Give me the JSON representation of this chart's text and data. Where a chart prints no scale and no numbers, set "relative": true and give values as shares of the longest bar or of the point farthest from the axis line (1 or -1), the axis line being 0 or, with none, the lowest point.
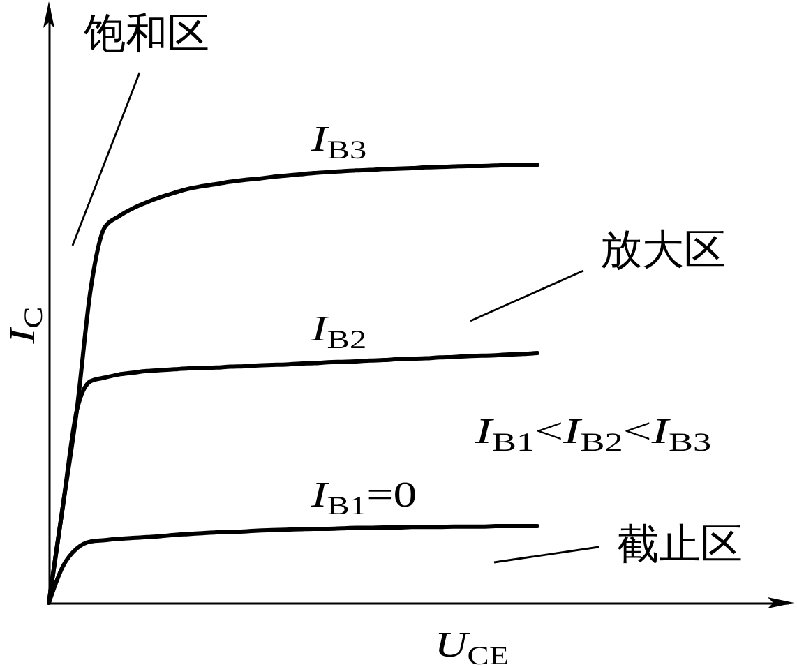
{
  "chart_data": {
    "type": "line",
    "relative": true,
    "xlabel": "U$_{CE}$",
    "ylabel": "I$_{C}$",
    "tick_labels": false,
    "line_style": "solid",
    "categories": [
      null,
      null,
      null,
      null,
      null,
      null,
      null,
      null,
      null,
      null,
      null,
      null,
      null,
      null,
      null,
      null,
      null,
      null,
      null,
      null,
      null,
      null,
      null,
      null,
      null,
      null,
      null,
      null,
      null,
      null,
      null,
      null,
      null,
      null,
      null,
      null,
      null,
      null,
      null,
      null,
      null,
      null,
      null,
      null,
      null,
      null,
      null,
      null,
      null,
      null,
      null,
      null,
      null,
      null
    ],
    "series": [
      {
        "name": "I$_{B3}$",
        "color": "#000000",
        "values": [
          0,
          0.22,
          0.439,
          0.717,
          0.857,
          0.882,
          0.9,
          0.914,
          0.926,
          0.936,
          0.945,
          0.951,
          0.956,
          0.961,
          0.965,
          0.968,
          0.972,
          0.975,
          0.978,
          0.981,
          0.983,
          0.985,
          0.987,
          0.988,
          0.99,
          0.991,
          0.992,
          0.994,
          0.995,
          0.996,
          0.997,
          0.997,
          0.998,
          0.999,
          0.999,
          1,
          null,
          null,
          null,
          null,
          null,
          null,
          null,
          null,
          null,
          null,
          null,
          null,
          null,
          null,
          null,
          null,
          null,
          null
        ]
      },
      {
        "name": "I$_{B2}$",
        "color": "#000000",
        "values": [
          0,
          0.22,
          0.439,
          0.506,
          0.514,
          0.521,
          0.525,
          0.529,
          0.531,
          0.533,
          0.535,
          0.536,
          0.537,
          0.539,
          0.54,
          0.542,
          0.543,
          0.544,
          0.546,
          0.547,
          0.549,
          0.55,
          0.551,
          0.553,
          0.554,
          0.556,
          0.557,
          0.558,
          0.56,
          0.561,
          0.563,
          0.564,
          0.565,
          0.567,
          0.568,
          0.57,
          null,
          null,
          null,
          null,
          null,
          null,
          null,
          null,
          null,
          null,
          null,
          null,
          null,
          null,
          null,
          null,
          null,
          null
        ]
      },
      {
        "name": "I$_{B1}$=0",
        "color": "#000000",
        "values": [
          0,
          0.083,
          0.124,
          0.14,
          0.143,
          0.146,
          0.148,
          0.15,
          0.152,
          0.155,
          0.157,
          0.159,
          0.161,
          0.162,
          0.163,
          0.165,
          0.166,
          0.167,
          0.168,
          0.169,
          0.169,
          0.17,
          0.171,
          0.171,
          0.172,
          0.172,
          0.173,
          0.173,
          0.173,
          0.174,
          0.174,
          0.174,
          0.175,
          0.175,
          0.175,
          0.175,
          null,
          null,
          null,
          null,
          null,
          null,
          null,
          null,
          null,
          null,
          null,
          null,
          null,
          null,
          null,
          null,
          null,
          null
        ]
      }
    ],
    "annotations": [
      "饱和区",
      "放大区",
      "I$_{B1}$<I$_{B2}$<I$_{B3}$",
      "截止区"
    ]
  }
}
